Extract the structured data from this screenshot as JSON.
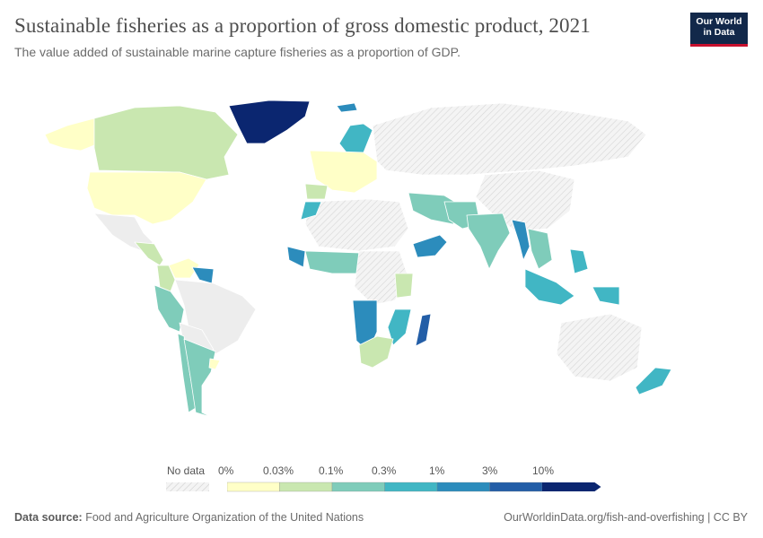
{
  "title": "Sustainable fisheries as a proportion of gross domestic product, 2021",
  "subtitle": "The value added of sustainable marine capture fisheries as a proportion of GDP.",
  "logo": {
    "line1": "Our World",
    "line2": "in Data",
    "bg": "#12284a",
    "accent": "#c8102e"
  },
  "legend": {
    "no_data_label": "No data",
    "bins": [
      "0%",
      "0.03%",
      "0.1%",
      "0.3%",
      "1%",
      "3%",
      "10%"
    ],
    "colors": [
      "#ffffc7",
      "#c9e7b0",
      "#7fccba",
      "#41b6c4",
      "#2c8cbc",
      "#235ea7",
      "#0b2670"
    ]
  },
  "footer": {
    "source_label": "Data source:",
    "source": "Food and Agriculture Organization of the United Nations",
    "right": "OurWorldinData.org/fish-and-overfishing | CC BY"
  },
  "map_regions": {
    "greenland": "#0b2670",
    "canada": "#c9e7b0",
    "usa": "#ffffc7",
    "alaska": "#ffffc7",
    "mexico": "#ededed",
    "central_america": "#c9e7b0",
    "colombia": "#c9e7b0",
    "venezuela": "#ffffc7",
    "guyana_suriname": "#2c8cbc",
    "ecuador_peru": "#7fccba",
    "brazil": "#ededed",
    "bolivia_paraguay": "#ededed",
    "chile": "#7fccba",
    "argentina": "#7fccba",
    "uruguay": "#ffffc7",
    "europe_west": "#ffffc7",
    "iberia": "#c9e7b0",
    "scandinavia": "#41b6c4",
    "iceland": "#2c8cbc",
    "russia": "#ededed",
    "morocco": "#41b6c4",
    "west_africa": "#7fccba",
    "senegal_guinea": "#2c8cbc",
    "namibia_angola": "#2c8cbc",
    "south_africa": "#c9e7b0",
    "mozambique": "#41b6c4",
    "madagascar": "#235ea7",
    "kenya_tanzania": "#c9e7b0",
    "middle_east": "#7fccba",
    "oman_yemen": "#2c8cbc",
    "iran_pakistan": "#7fccba",
    "india": "#7fccba",
    "myanmar": "#2c8cbc",
    "thailand_vietnam": "#7fccba",
    "indonesia": "#41b6c4",
    "philippines": "#41b6c4",
    "papua": "#41b6c4",
    "new_zealand": "#41b6c4",
    "australia": "#ededed",
    "china": "#ededed",
    "north_africa": "#ededed",
    "central_africa": "#ededed"
  }
}
